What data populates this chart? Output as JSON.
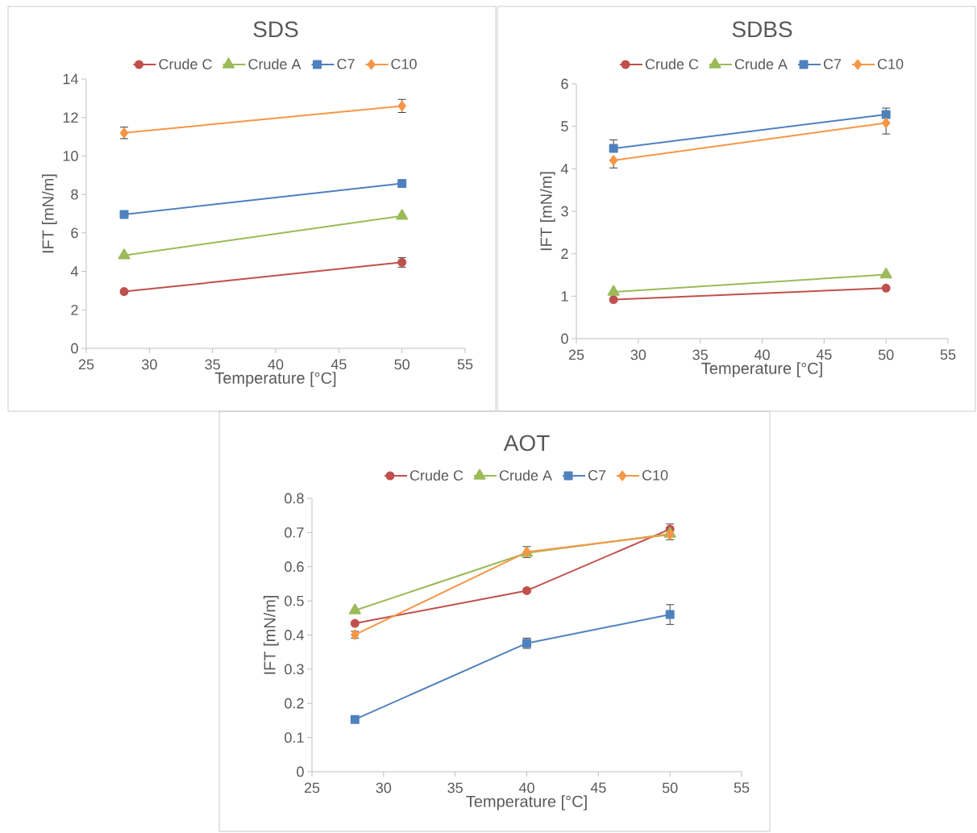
{
  "chart_data": [
    {
      "type": "line",
      "title": "SDS",
      "xlabel": "Temperature [°C]",
      "ylabel": "IFT [mN/m]",
      "legend": "top",
      "x": [
        28,
        50
      ],
      "xlim": [
        25,
        55
      ],
      "xticks": [
        25,
        30,
        35,
        40,
        45,
        50,
        55
      ],
      "ylim": [
        0,
        14
      ],
      "yticks": [
        0,
        2,
        4,
        6,
        8,
        10,
        12,
        14
      ],
      "series": [
        {
          "name": "Crude C",
          "color": "#c0504d",
          "marker": "circle",
          "values": [
            2.95,
            4.47
          ],
          "errors": [
            null,
            0.25
          ]
        },
        {
          "name": "Crude A",
          "color": "#9bbb59",
          "marker": "triangle",
          "values": [
            4.83,
            6.88
          ]
        },
        {
          "name": "C7",
          "color": "#4f81bd",
          "marker": "square",
          "values": [
            6.96,
            8.57
          ],
          "errors": [
            null,
            null
          ]
        },
        {
          "name": "C10",
          "color": "#f79646",
          "marker": "diamond",
          "values": [
            11.2,
            12.6
          ],
          "errors": [
            0.3,
            0.34
          ]
        }
      ]
    },
    {
      "type": "line",
      "title": "SDBS",
      "xlabel": "Temperature [°C]",
      "ylabel": "IFT [mN/m]",
      "legend": "top",
      "x": [
        28,
        50
      ],
      "xlim": [
        25,
        55
      ],
      "xticks": [
        25,
        30,
        35,
        40,
        45,
        50,
        55
      ],
      "ylim": [
        0,
        6
      ],
      "yticks": [
        0,
        1,
        2,
        3,
        4,
        5,
        6
      ],
      "series": [
        {
          "name": "Crude C",
          "color": "#c0504d",
          "marker": "circle",
          "values": [
            0.92,
            1.19
          ],
          "errors": [
            null,
            null
          ]
        },
        {
          "name": "Crude A",
          "color": "#9bbb59",
          "marker": "triangle",
          "values": [
            1.1,
            1.51
          ]
        },
        {
          "name": "C7",
          "color": "#4f81bd",
          "marker": "square",
          "values": [
            4.48,
            5.28
          ],
          "errors": [
            [
              4.48,
              4.68
            ],
            [
              5.28,
              5.43
            ]
          ]
        },
        {
          "name": "C10",
          "color": "#f79646",
          "marker": "diamond",
          "values": [
            4.2,
            5.08
          ],
          "errors": [
            [
              4.02,
              4.2
            ],
            [
              4.82,
              5.08
            ]
          ]
        }
      ]
    },
    {
      "type": "line",
      "title": "AOT",
      "xlabel": "Temperature [°C]",
      "ylabel": "IFT [mN/m]",
      "legend": "top",
      "x": [
        28,
        40,
        50
      ],
      "xlim": [
        25,
        55
      ],
      "xticks": [
        25,
        30,
        35,
        40,
        45,
        50,
        55
      ],
      "ylim": [
        0,
        0.8
      ],
      "yticks": [
        0,
        0.1,
        0.2,
        0.3,
        0.4,
        0.5,
        0.6,
        0.7,
        0.8
      ],
      "series": [
        {
          "name": "Crude C",
          "color": "#c0504d",
          "marker": "circle",
          "values": [
            0.434,
            0.53,
            0.71
          ],
          "errors": [
            null,
            null,
            [
              0.71,
              0.725
            ]
          ]
        },
        {
          "name": "Crude A",
          "color": "#9bbb59",
          "marker": "triangle",
          "values": [
            0.472,
            0.64,
            0.696
          ]
        },
        {
          "name": "C7",
          "color": "#4f81bd",
          "marker": "square",
          "values": [
            0.153,
            0.376,
            0.46
          ],
          "errors": [
            null,
            0.015,
            0.029
          ]
        },
        {
          "name": "C10",
          "color": "#f79646",
          "marker": "diamond",
          "values": [
            0.401,
            0.643,
            0.694
          ],
          "errors": [
            0.01,
            0.016,
            [
              0.679,
              0.694
            ]
          ]
        }
      ]
    }
  ]
}
